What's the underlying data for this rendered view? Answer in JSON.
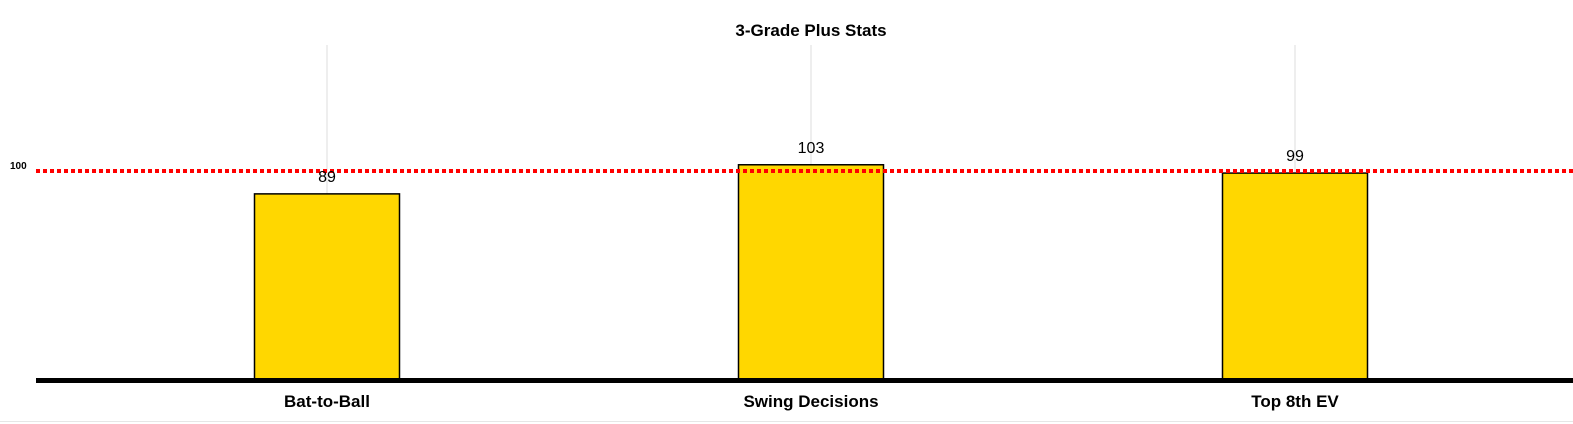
{
  "chart_data": {
    "type": "bar",
    "title": "3-Grade Plus Stats",
    "categories": [
      "Bat-to-Ball",
      "Swing Decisions",
      "Top 8th EV"
    ],
    "values": [
      89,
      103,
      99
    ],
    "data_labels": [
      "89",
      "103",
      "99"
    ],
    "xlabel": "",
    "ylabel": "",
    "ylim": [
      0,
      140
    ],
    "reference_line": {
      "value": 100,
      "label": "100",
      "color": "#ff0000",
      "style": "dotted"
    },
    "bar_color": "#FFD700",
    "bar_edge_color": "#000000",
    "grid": "vertical",
    "legend": "none"
  }
}
